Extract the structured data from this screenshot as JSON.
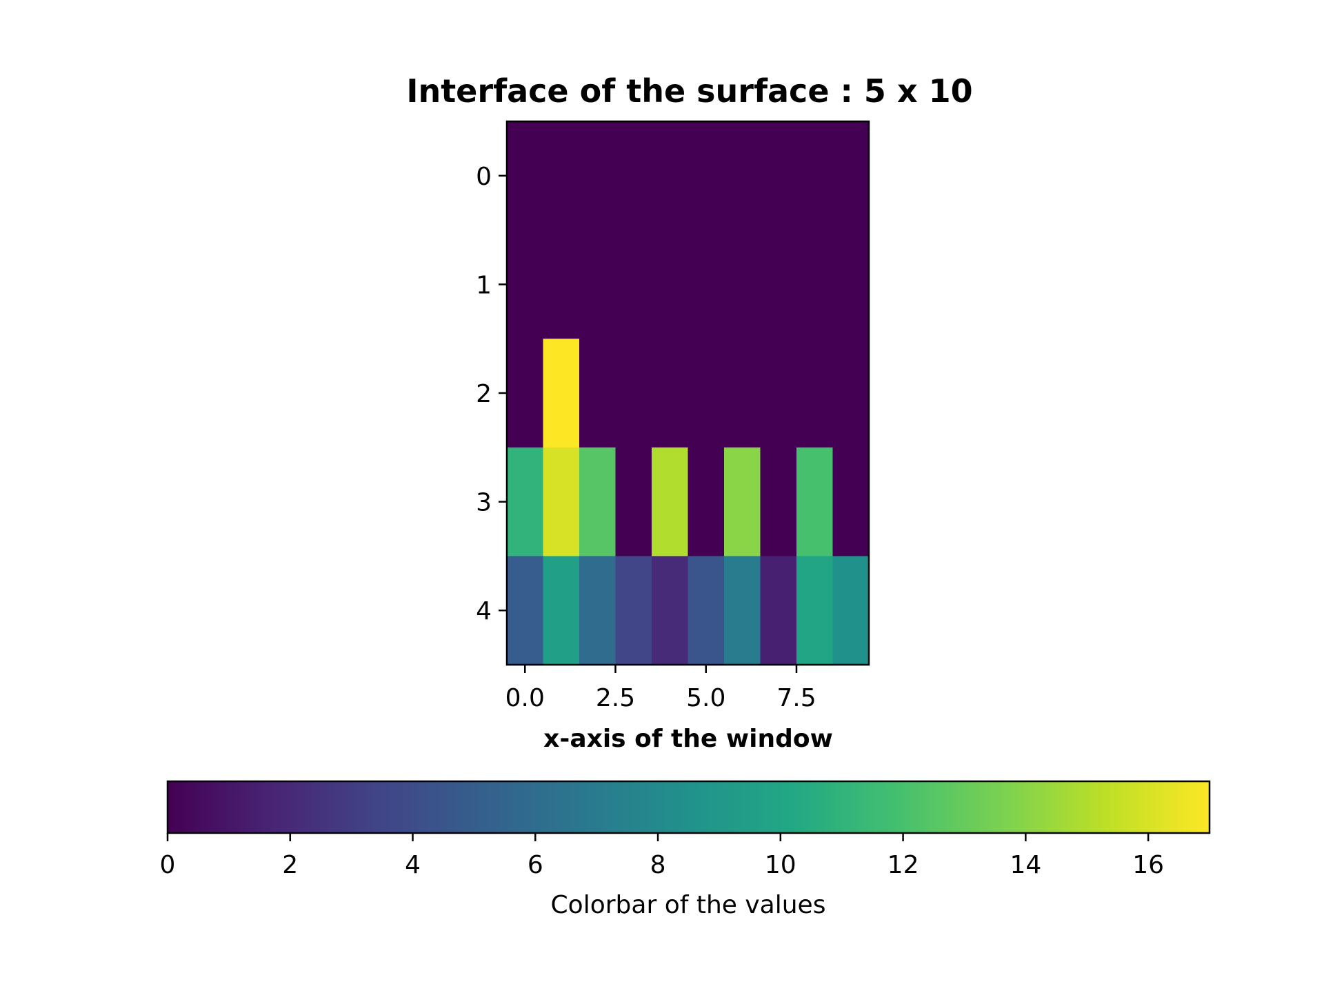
{
  "chart_data": {
    "type": "heatmap",
    "title": "Interface of the surface : 5 x 10",
    "xlabel": "x-axis of the window",
    "ylabel": "",
    "rows": 5,
    "cols": 10,
    "x_ticks": [
      "0.0",
      "2.5",
      "5.0",
      "7.5"
    ],
    "x_tick_values": [
      0,
      2.5,
      5,
      7.5
    ],
    "y_ticks": [
      "0",
      "1",
      "2",
      "3",
      "4"
    ],
    "y_tick_values": [
      0,
      1,
      2,
      3,
      4
    ],
    "values": [
      [
        0,
        0,
        0,
        0,
        0,
        0,
        0,
        0,
        0,
        0
      ],
      [
        0,
        0,
        0,
        0,
        0,
        0,
        0,
        0,
        0,
        0
      ],
      [
        0,
        17,
        0,
        0,
        0,
        0,
        0,
        0,
        0,
        0
      ],
      [
        11,
        16,
        12.5,
        0,
        15,
        0,
        14,
        0,
        12,
        0
      ],
      [
        5,
        9.5,
        6,
        3.5,
        2,
        4.5,
        7,
        1.5,
        10,
        8.5
      ]
    ],
    "colormap": "viridis",
    "vmin": 0,
    "vmax": 17,
    "colorbar": {
      "orientation": "horizontal",
      "label": "Colorbar of the values",
      "ticks": [
        "0",
        "2",
        "4",
        "6",
        "8",
        "10",
        "12",
        "14",
        "16"
      ],
      "tick_values": [
        0,
        2,
        4,
        6,
        8,
        10,
        12,
        14,
        16
      ]
    },
    "grid": false
  }
}
